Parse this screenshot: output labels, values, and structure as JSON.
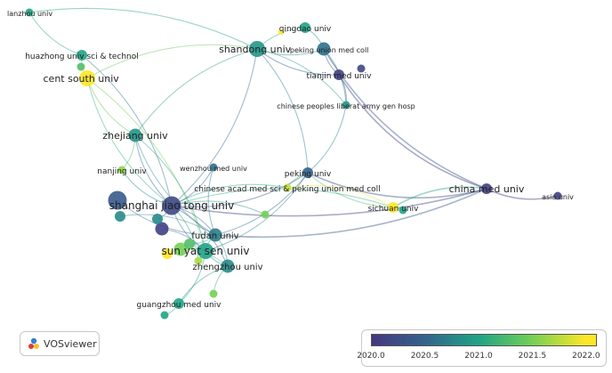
{
  "colors": {
    "v2020": "#453781",
    "v2020_5": "#33638d",
    "v2021": "#20a387",
    "v2021_5": "#73d055",
    "v2022": "#fde725"
  },
  "nodes": [
    {
      "id": "lanzhou",
      "label": "lanzhou univ",
      "size": 2,
      "value": 2021.0
    },
    {
      "id": "huazhong",
      "label": "huazhong univ sci & technol",
      "size": 3,
      "value": 2021.0
    },
    {
      "id": "huazhong2",
      "label": "",
      "size": 2,
      "value": 2021.3
    },
    {
      "id": "centsouth",
      "label": "cent south univ",
      "size": 5,
      "value": 2022.0
    },
    {
      "id": "qingdao",
      "label": "qingdao univ",
      "size": 3,
      "value": 2021.0
    },
    {
      "id": "qingdao2",
      "label": "",
      "size": 1,
      "value": 2022.0
    },
    {
      "id": "shandong",
      "label": "shandong univ",
      "size": 5,
      "value": 2020.9
    },
    {
      "id": "pekingunion",
      "label": "peking union med coll",
      "size": 4,
      "value": 2020.6
    },
    {
      "id": "pekingunion2",
      "label": "",
      "size": 2,
      "value": 2020.2
    },
    {
      "id": "tianjin",
      "label": "tianjin med univ",
      "size": 3,
      "value": 2020.1
    },
    {
      "id": "pla",
      "label": "chinese peoples liberat army gen hosp",
      "size": 2,
      "value": 2020.9
    },
    {
      "id": "zhejiang",
      "label": "zhejiang univ",
      "size": 4,
      "value": 2020.9
    },
    {
      "id": "nanjing",
      "label": "nanjing univ",
      "size": 2,
      "value": 2021.6
    },
    {
      "id": "wenzhou",
      "label": "wenzhou med univ",
      "size": 2,
      "value": 2020.6
    },
    {
      "id": "peking",
      "label": "peking univ",
      "size": 3,
      "value": 2020.5
    },
    {
      "id": "cams",
      "label": "chinese acad med sci & peking union med coll",
      "size": 2,
      "value": 2021.8
    },
    {
      "id": "chinamed",
      "label": "china med univ",
      "size": 3,
      "value": 2020.1
    },
    {
      "id": "asia",
      "label": "asia univ",
      "size": 2,
      "value": 2020.1
    },
    {
      "id": "sichuan",
      "label": "sichuan univ",
      "size": 3,
      "value": 2022.0
    },
    {
      "id": "sichuan2",
      "label": "",
      "size": 2,
      "value": 2021.0
    },
    {
      "id": "sjtu",
      "label": "shanghai jiao tong univ",
      "size": 6,
      "value": 2020.2
    },
    {
      "id": "sjtu_a",
      "label": "",
      "size": 6,
      "value": 2020.4
    },
    {
      "id": "sjtu_b",
      "label": "",
      "size": 4,
      "value": 2020.1
    },
    {
      "id": "sjtu_c",
      "label": "",
      "size": 3,
      "value": 2020.8
    },
    {
      "id": "sjtu_d",
      "label": "",
      "size": 3,
      "value": 2020.8
    },
    {
      "id": "sjtu_e",
      "label": "",
      "size": 2,
      "value": 2021.5
    },
    {
      "id": "fudan",
      "label": "fudan univ",
      "size": 4,
      "value": 2020.7
    },
    {
      "id": "sysu",
      "label": "sun yat sen univ",
      "size": 5,
      "value": 2021.0
    },
    {
      "id": "sysu_a",
      "label": "",
      "size": 4,
      "value": 2021.5
    },
    {
      "id": "sysu_b",
      "label": "",
      "size": 3,
      "value": 2022.0
    },
    {
      "id": "sysu_c",
      "label": "",
      "size": 3,
      "value": 2021.3
    },
    {
      "id": "zhengzhou",
      "label": "zhengzhou univ",
      "size": 4,
      "value": 2020.8
    },
    {
      "id": "yellow_mid",
      "label": "",
      "size": 2,
      "value": 2021.7
    },
    {
      "id": "green_low",
      "label": "",
      "size": 2,
      "value": 2021.5
    },
    {
      "id": "guangzhou",
      "label": "guangzhou med univ",
      "size": 3,
      "value": 2021.0
    },
    {
      "id": "guangzhou2",
      "label": "",
      "size": 2,
      "value": 2021.0
    }
  ],
  "links": [
    [
      "lanzhou",
      "huazhong"
    ],
    [
      "lanzhou",
      "shandong"
    ],
    [
      "huazhong",
      "centsouth"
    ],
    [
      "huazhong",
      "sjtu"
    ],
    [
      "centsouth",
      "zhejiang"
    ],
    [
      "centsouth",
      "sysu"
    ],
    [
      "centsouth",
      "sjtu"
    ],
    [
      "centsouth",
      "shandong"
    ],
    [
      "qingdao",
      "shandong"
    ],
    [
      "qingdao",
      "pekingunion"
    ],
    [
      "shandong",
      "pekingunion"
    ],
    [
      "shandong",
      "sjtu"
    ],
    [
      "shandong",
      "tianjin"
    ],
    [
      "shandong",
      "peking"
    ],
    [
      "shandong",
      "zhejiang"
    ],
    [
      "shandong",
      "pla"
    ],
    [
      "pekingunion",
      "tianjin"
    ],
    [
      "pekingunion",
      "pla"
    ],
    [
      "pekingunion",
      "chinamed"
    ],
    [
      "tianjin",
      "pla"
    ],
    [
      "tianjin",
      "chinamed"
    ],
    [
      "pla",
      "peking"
    ],
    [
      "peking",
      "chinamed"
    ],
    [
      "peking",
      "sjtu"
    ],
    [
      "peking",
      "cams"
    ],
    [
      "peking",
      "sysu"
    ],
    [
      "peking",
      "sichuan"
    ],
    [
      "peking",
      "fudan"
    ],
    [
      "cams",
      "sjtu"
    ],
    [
      "cams",
      "sichuan"
    ],
    [
      "chinamed",
      "asia"
    ],
    [
      "chinamed",
      "sjtu"
    ],
    [
      "chinamed",
      "sichuan"
    ],
    [
      "chinamed",
      "fudan"
    ],
    [
      "zhejiang",
      "sjtu"
    ],
    [
      "zhejiang",
      "nanjing"
    ],
    [
      "zhejiang",
      "fudan"
    ],
    [
      "zhejiang",
      "sysu"
    ],
    [
      "nanjing",
      "sjtu"
    ],
    [
      "wenzhou",
      "sjtu"
    ],
    [
      "wenzhou",
      "fudan"
    ],
    [
      "sjtu",
      "fudan"
    ],
    [
      "sjtu",
      "sysu"
    ],
    [
      "sjtu",
      "zhengzhou"
    ],
    [
      "sjtu_a",
      "fudan"
    ],
    [
      "sjtu_b",
      "sysu"
    ],
    [
      "fudan",
      "sysu"
    ],
    [
      "fudan",
      "zhengzhou"
    ],
    [
      "sysu",
      "zhengzhou"
    ],
    [
      "sysu",
      "guangzhou"
    ],
    [
      "zhengzhou",
      "guangzhou"
    ],
    [
      "sysu_a",
      "zhengzhou"
    ],
    [
      "sichuan",
      "sjtu"
    ],
    [
      "guangzhou",
      "guangzhou2"
    ],
    [
      "yellow_mid",
      "sjtu"
    ],
    [
      "green_low",
      "zhengzhou"
    ],
    [
      "sjtu_c",
      "sjtu"
    ],
    [
      "sjtu_d",
      "fudan"
    ],
    [
      "sjtu_e",
      "sjtu"
    ],
    [
      "sysu_b",
      "sysu"
    ],
    [
      "sysu_c",
      "fudan"
    ]
  ],
  "legend": {
    "ticks": [
      "2020.0",
      "2020.5",
      "2021.0",
      "2021.5",
      "2022.0"
    ],
    "min": 2020.0,
    "max": 2022.1
  },
  "logo": {
    "text": "VOSviewer",
    "icon": "vosviewer-logo-icon"
  }
}
